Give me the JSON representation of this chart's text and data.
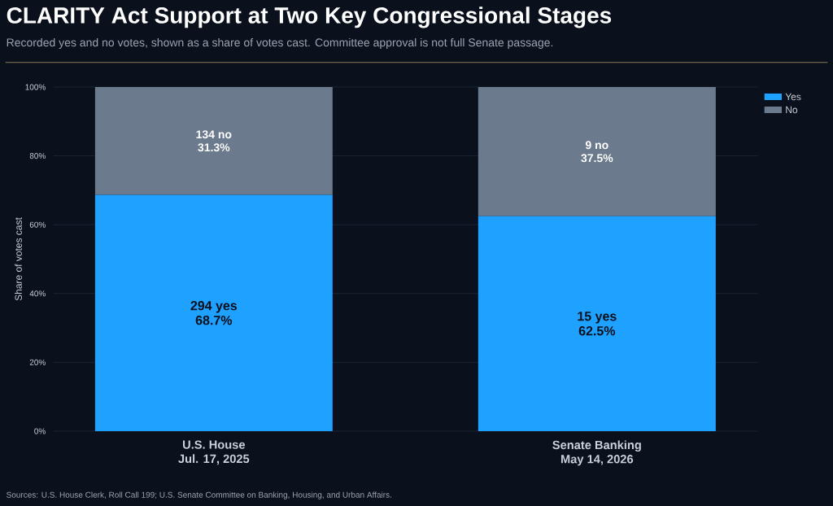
{
  "chart_data": {
    "type": "bar",
    "stacked": true,
    "title": "CLARITY Act Support at Two Key Congressional Stages",
    "subtitle": "Recorded yes and no votes, shown as a share of votes cast. Committee approval is not full Senate passage.",
    "ylabel": "Share of votes cast",
    "categories": [
      "U.S. House Jul. 17, 2025",
      "Senate Banking May 14, 2026"
    ],
    "series": [
      {
        "name": "Yes",
        "color": "#1ea1ff",
        "values": [
          68.7,
          62.5
        ],
        "value_labels": [
          "294 yes 68.7%",
          "15 yes 62.5%"
        ]
      },
      {
        "name": "No",
        "color": "#6b7a8c",
        "values": [
          31.3,
          37.5
        ],
        "value_labels": [
          "134 no 31.3%",
          "9 no 37.5%"
        ]
      }
    ],
    "ylim": [
      0,
      100
    ],
    "yticks": [
      {
        "value": 0,
        "label": "0%"
      },
      {
        "value": 20,
        "label": "20%"
      },
      {
        "value": 40,
        "label": "40%"
      },
      {
        "value": 60,
        "label": "60%"
      },
      {
        "value": 80,
        "label": "80%"
      },
      {
        "value": 100,
        "label": "100%"
      }
    ],
    "grid": "y",
    "legend": "top right",
    "annotations": [
      "Sources: U.S. House Clerk, Roll Call 199; U.S. Senate Committee on Banking, Housing, and Urban Affairs."
    ]
  }
}
